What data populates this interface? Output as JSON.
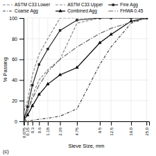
{
  "chart_data": {
    "type": "line",
    "xlabel": "Sieve Size, mm",
    "ylabel": "% Passing",
    "annotation": "(c)",
    "x": [
      0.075,
      0.15,
      0.3,
      0.6,
      1.18,
      2.36,
      4.75,
      9.5,
      12.5,
      19.0,
      25.0
    ],
    "series": [
      {
        "name": "ASTM C33 Lower",
        "color": "#888888",
        "line_style": "dashed",
        "values": [
          2,
          10,
          25,
          40,
          50,
          60,
          95,
          100,
          100,
          100,
          100
        ]
      },
      {
        "name": "ASTM C33 Upper",
        "color": "#888888",
        "line_style": "dashed",
        "values": [
          10,
          20,
          45,
          65,
          80,
          100,
          100,
          100,
          100,
          100,
          100
        ]
      },
      {
        "name": "Fine Agg",
        "color": "#222222",
        "line_style": "solid",
        "marker": "square",
        "values": [
          3,
          14,
          35,
          55,
          70,
          88,
          98,
          100,
          100,
          100,
          100
        ]
      },
      {
        "name": "Coarse Agg",
        "color": "#444444",
        "line_style": "dashdot",
        "values": [
          1,
          1,
          1,
          2,
          3,
          5,
          12,
          55,
          72,
          95,
          100
        ]
      },
      {
        "name": "Combined Agg",
        "color": "#000000",
        "line_style": "solid",
        "marker": "triangle",
        "values": [
          2,
          6,
          15,
          26,
          36,
          45,
          52,
          76,
          84,
          97,
          100
        ]
      },
      {
        "name": "FHWA 0.45",
        "color": "#666666",
        "line_style": "longdashdot",
        "values": [
          0,
          10,
          22,
          35,
          48,
          60,
          72,
          85,
          90,
          96,
          100
        ]
      }
    ],
    "xlim": [
      0.06692,
      26.125
    ],
    "xticks": [
      0.075,
      0.15,
      0.3,
      0.6,
      1.18,
      2.36,
      4.75,
      9.5,
      12.5,
      {
        "value": 19,
        "label": "19.0"
      },
      {
        "value": 25,
        "label": "25.0"
      }
    ],
    "ylim": [
      0,
      100
    ],
    "yticks": [
      0,
      20,
      40,
      60,
      80,
      100
    ],
    "grid": true,
    "legend": "upper-left"
  }
}
